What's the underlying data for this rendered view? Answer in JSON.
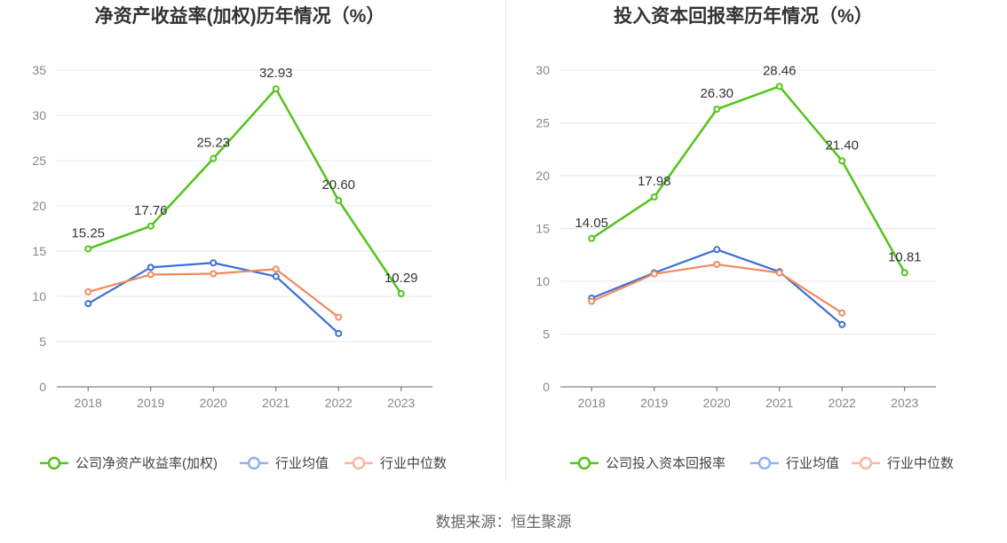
{
  "colors": {
    "company": "#52c41a",
    "avg": "#3b6fd8",
    "median": "#f08a5d",
    "legend_avg": "#91b3ee",
    "legend_median": "#f7b8a0"
  },
  "source": "数据来源：恒生聚源",
  "chart_data": [
    {
      "type": "line",
      "title": "净资产收益率(加权)历年情况（%）",
      "categories": [
        "2018",
        "2019",
        "2020",
        "2021",
        "2022",
        "2023"
      ],
      "ylim": [
        0,
        35
      ],
      "yticks": [
        0,
        5,
        10,
        15,
        20,
        25,
        30,
        35
      ],
      "grid": true,
      "legend_position": "bottom",
      "series": [
        {
          "name": "公司净资产收益率(加权)",
          "key": "company",
          "values": [
            15.25,
            17.76,
            25.23,
            32.93,
            20.6,
            10.29
          ],
          "labels": [
            "15.25",
            "17.76",
            "25.23",
            "32.93",
            "20.60",
            "10.29"
          ]
        },
        {
          "name": "行业均值",
          "key": "avg",
          "values": [
            9.2,
            13.2,
            13.7,
            12.2,
            5.9,
            null
          ]
        },
        {
          "name": "行业中位数",
          "key": "median",
          "values": [
            10.5,
            12.4,
            12.5,
            13.0,
            7.7,
            null
          ]
        }
      ]
    },
    {
      "type": "line",
      "title": "投入资本回报率历年情况（%）",
      "categories": [
        "2018",
        "2019",
        "2020",
        "2021",
        "2022",
        "2023"
      ],
      "ylim": [
        0,
        30
      ],
      "yticks": [
        0,
        5,
        10,
        15,
        20,
        25,
        30
      ],
      "grid": true,
      "legend_position": "bottom",
      "series": [
        {
          "name": "公司投入资本回报率",
          "key": "company",
          "values": [
            14.05,
            17.98,
            26.3,
            28.46,
            21.4,
            10.81
          ],
          "labels": [
            "14.05",
            "17.98",
            "26.30",
            "28.46",
            "21.40",
            "10.81"
          ]
        },
        {
          "name": "行业均值",
          "key": "avg",
          "values": [
            8.4,
            10.8,
            13.0,
            10.9,
            5.9,
            null
          ]
        },
        {
          "name": "行业中位数",
          "key": "median",
          "values": [
            8.1,
            10.7,
            11.6,
            10.8,
            7.0,
            null
          ]
        }
      ]
    }
  ]
}
